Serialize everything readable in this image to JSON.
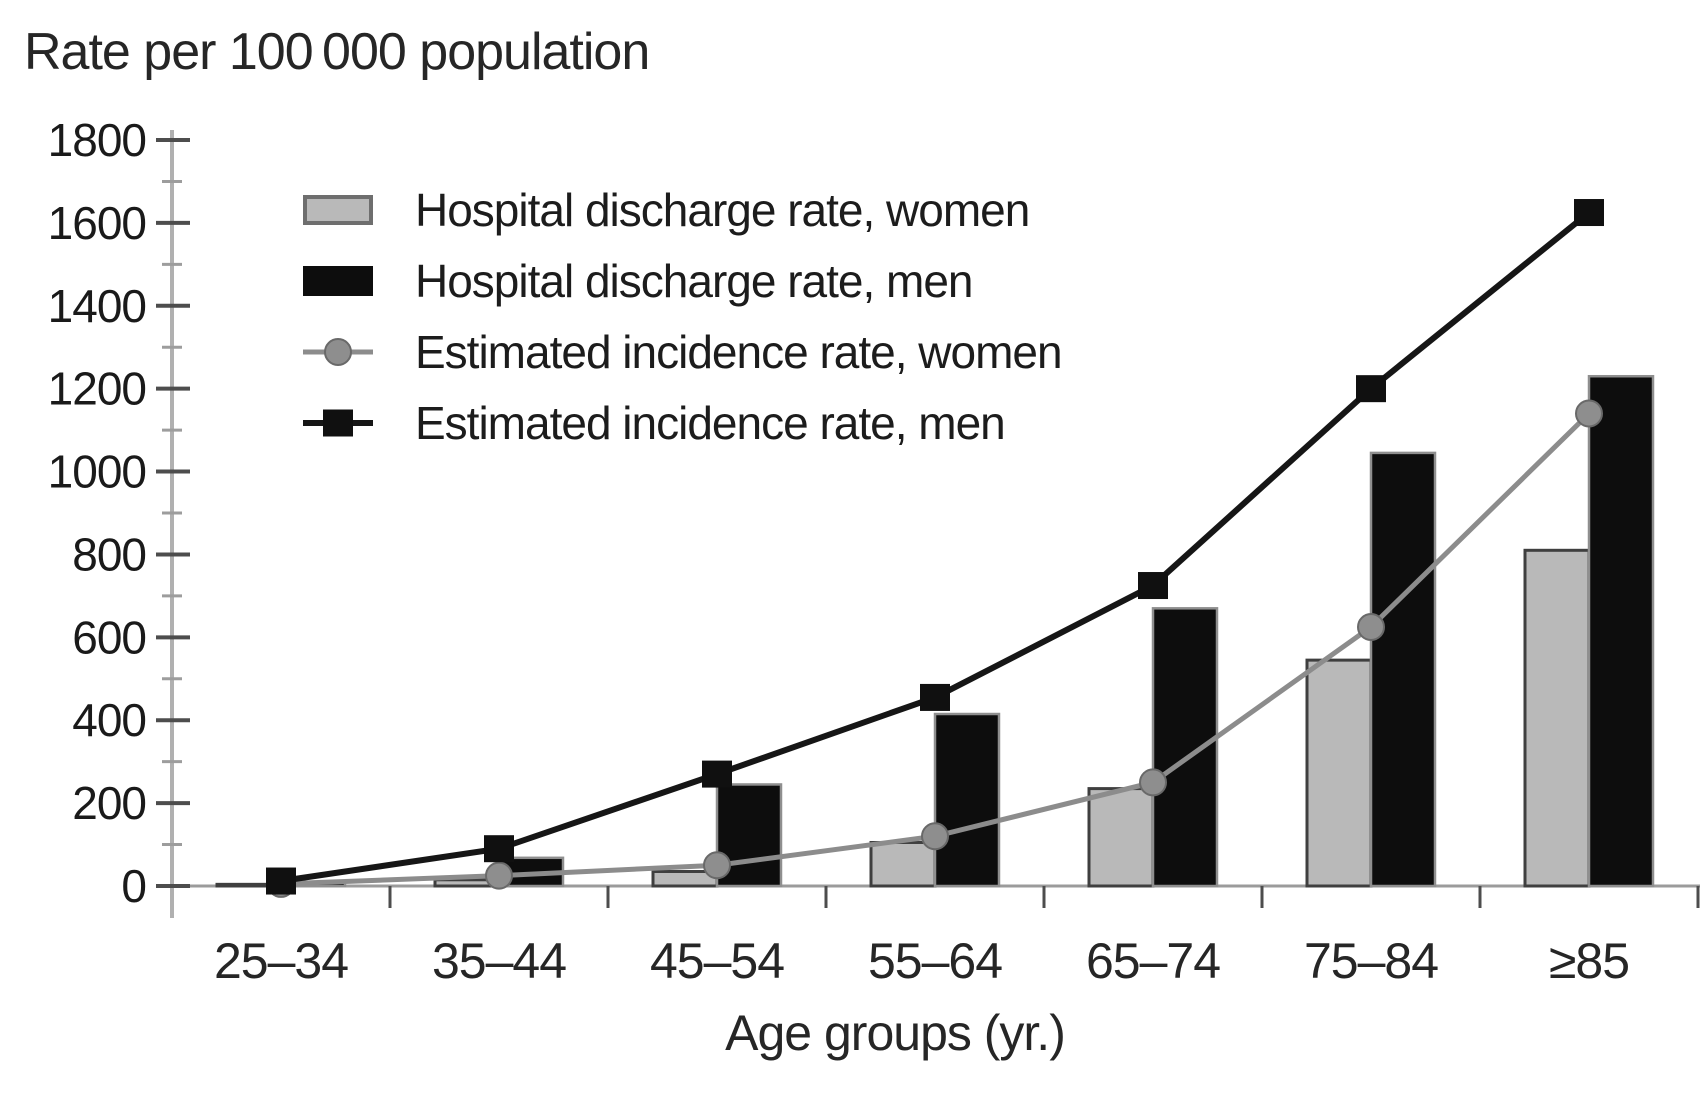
{
  "title": "Rate per 100 000 population",
  "axes": {
    "x_label": "Age groups (yr.)",
    "y_tick_labels": [
      "0",
      "200",
      "400",
      "600",
      "800",
      "1000",
      "1200",
      "1400",
      "1600",
      "1800"
    ]
  },
  "legend": {
    "items": [
      {
        "label": "Hospital discharge rate, women"
      },
      {
        "label": "Hospital discharge rate, men"
      },
      {
        "label": "Estimated incidence rate, women"
      },
      {
        "label": "Estimated incidence rate, men"
      }
    ]
  },
  "chart_data": {
    "type": "bar+line combo",
    "title": "Rate per 100 000 population",
    "xlabel": "Age groups (yr.)",
    "ylabel": "Rate per 100 000 population",
    "categories": [
      "25–34",
      "35–44",
      "45–54",
      "55–64",
      "65–74",
      "75–84",
      "≥85"
    ],
    "series": [
      {
        "name": "Hospital discharge rate, women",
        "type": "bar",
        "marker": null,
        "color": "#b9b9b9",
        "border_color": "#3f3f3f",
        "values": [
          4,
          15,
          35,
          105,
          235,
          545,
          810
        ]
      },
      {
        "name": "Hospital discharge rate, men",
        "type": "bar",
        "marker": null,
        "color": "#0d0d0d",
        "border_color": "#8f8f8f",
        "values": [
          8,
          68,
          245,
          415,
          670,
          1045,
          1230
        ]
      },
      {
        "name": "Estimated incidence rate, women",
        "type": "line",
        "marker": "circle",
        "color": "#8c8c8c",
        "marker_color": "#8e8e8e",
        "values": [
          5,
          25,
          50,
          120,
          250,
          625,
          1140
        ]
      },
      {
        "name": "Estimated incidence rate, men",
        "type": "line",
        "marker": "square",
        "color": "#161616",
        "marker_color": "#101010",
        "values": [
          12,
          90,
          270,
          455,
          725,
          1200,
          1625
        ]
      }
    ],
    "ylim": [
      0,
      1800
    ],
    "ytick_step": 200,
    "y_minor_tick_step": 100,
    "grid": false,
    "legend_position": "upper left inside plot",
    "axis_colors": {
      "axis_line": "#b0b0b0",
      "baseline": "#9b9b9b",
      "major_tick": "#4d4d4d",
      "minor_tick": "#9d9d9d",
      "tick_label": "#1a1a1a"
    }
  }
}
